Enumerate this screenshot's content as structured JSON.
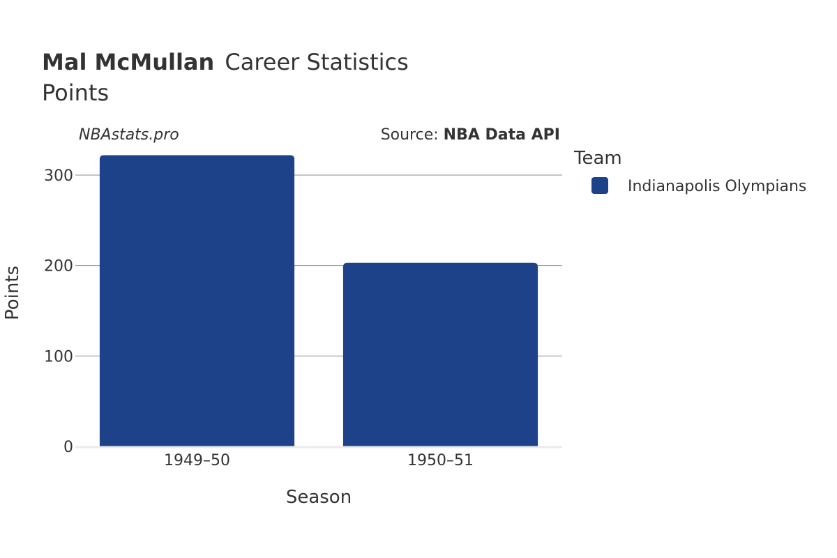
{
  "chart_data": {
    "type": "bar",
    "title_bold": "Mal McMullan",
    "title_rest": "Career Statistics",
    "subtitle": "Points",
    "brand": "NBAstats.pro",
    "source_label": "Source: ",
    "source_name": "NBA Data API",
    "xlabel": "Season",
    "ylabel": "Points",
    "categories": [
      "1949–50",
      "1950–51"
    ],
    "series": [
      {
        "name": "Indianapolis Olympians",
        "values": [
          322,
          203
        ],
        "color": "#1d428a"
      }
    ],
    "ylim": [
      0,
      330
    ],
    "yticks": [
      0,
      100,
      200,
      300
    ],
    "grid": true,
    "legend_title": "Team",
    "legend_position": "right"
  }
}
